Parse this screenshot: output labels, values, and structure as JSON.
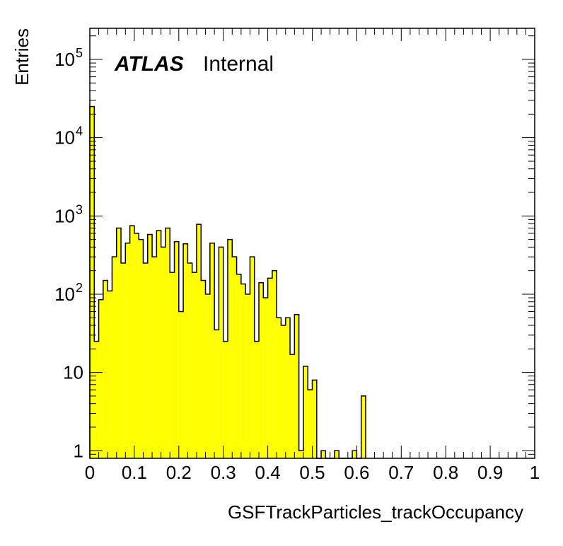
{
  "chart_data": {
    "type": "bar",
    "title": "",
    "xlabel": "GSFTrackParticles_trackOccupancy",
    "ylabel": "Entries",
    "yscale": "log",
    "xlim": [
      0,
      1
    ],
    "ylim": [
      0.8,
      250000
    ],
    "x_ticks": [
      "0",
      "0.1",
      "0.2",
      "0.3",
      "0.4",
      "0.5",
      "0.6",
      "0.7",
      "0.8",
      "0.9",
      "1"
    ],
    "y_ticks": [
      {
        "base": "1",
        "exp": ""
      },
      {
        "base": "10",
        "exp": ""
      },
      {
        "base": "10",
        "exp": "2"
      },
      {
        "base": "10",
        "exp": "3"
      },
      {
        "base": "10",
        "exp": "4"
      },
      {
        "base": "10",
        "exp": "5"
      }
    ],
    "bin_width": 0.01,
    "bin_low_edges": [
      0.0,
      0.01,
      0.02,
      0.03,
      0.04,
      0.05,
      0.06,
      0.07,
      0.08,
      0.09,
      0.1,
      0.11,
      0.12,
      0.13,
      0.14,
      0.15,
      0.16,
      0.17,
      0.18,
      0.19,
      0.2,
      0.21,
      0.22,
      0.23,
      0.24,
      0.25,
      0.26,
      0.27,
      0.28,
      0.29,
      0.3,
      0.31,
      0.32,
      0.33,
      0.34,
      0.35,
      0.36,
      0.37,
      0.38,
      0.39,
      0.4,
      0.41,
      0.42,
      0.43,
      0.44,
      0.45,
      0.46,
      0.47,
      0.48,
      0.49,
      0.5,
      0.51,
      0.52,
      0.53,
      0.54,
      0.55,
      0.56,
      0.57,
      0.58,
      0.59,
      0.6,
      0.61
    ],
    "values": [
      25000,
      25,
      85,
      150,
      110,
      300,
      700,
      250,
      450,
      750,
      600,
      500,
      250,
      580,
      300,
      650,
      400,
      700,
      190,
      470,
      60,
      440,
      250,
      190,
      780,
      150,
      100,
      450,
      35,
      400,
      25,
      500,
      300,
      180,
      135,
      100,
      300,
      25,
      140,
      90,
      160,
      200,
      50,
      40,
      50,
      17,
      55,
      1,
      12,
      6,
      8,
      0,
      1,
      0,
      0,
      1,
      0,
      0,
      0,
      1,
      0,
      5
    ],
    "fill_color": "#ffff00",
    "line_color": "#000000",
    "labels": {
      "experiment": "ATLAS",
      "status": "Internal"
    },
    "grid": false,
    "legend": "none"
  }
}
